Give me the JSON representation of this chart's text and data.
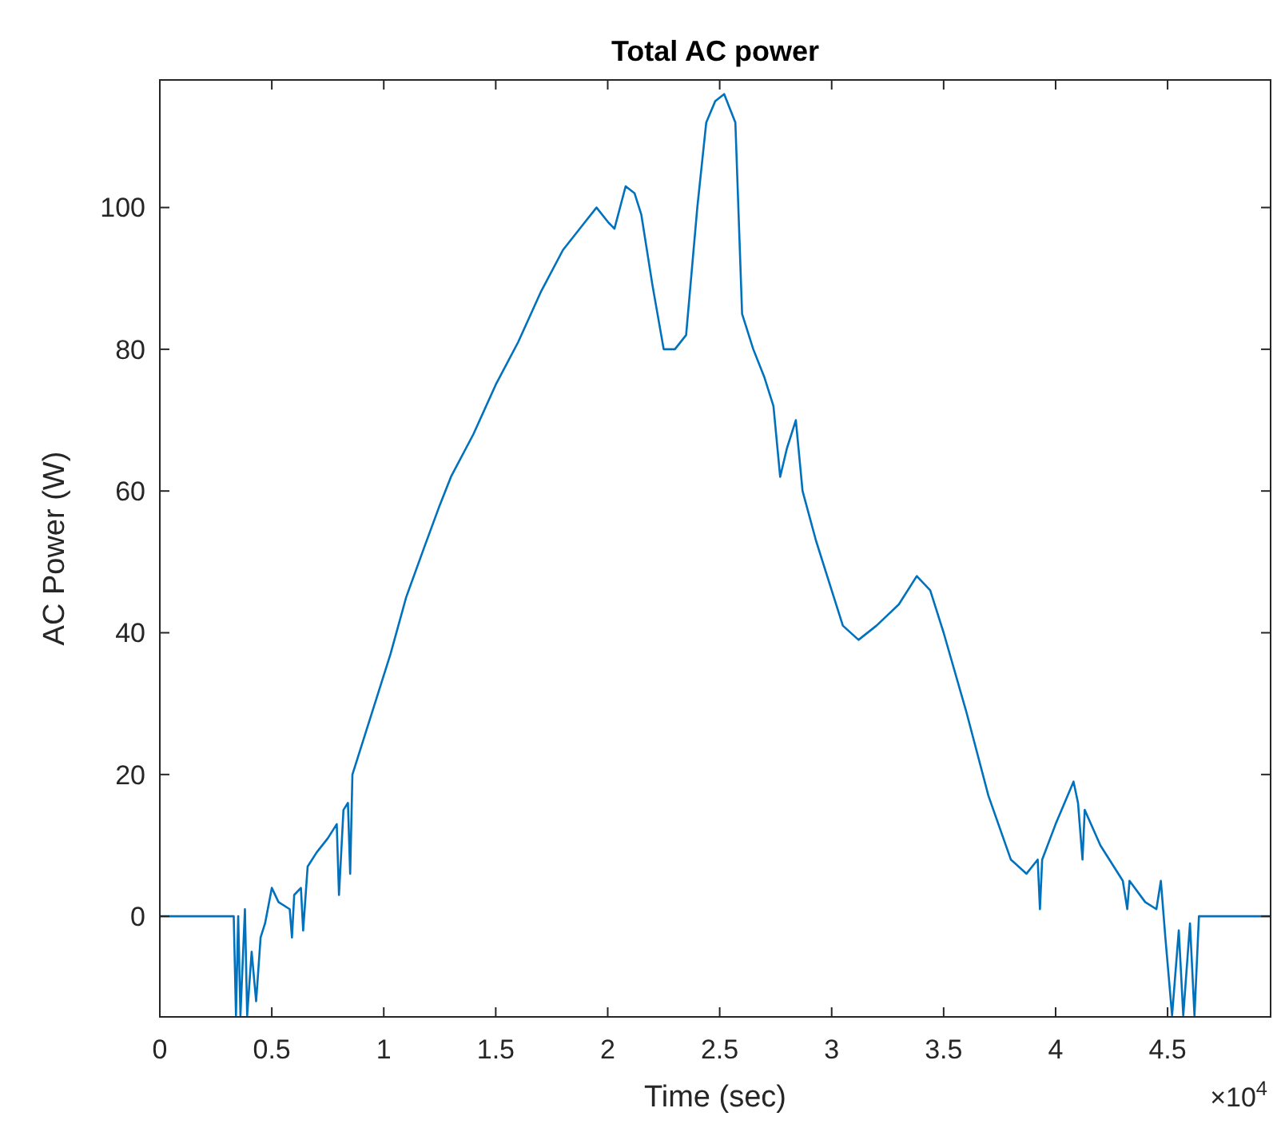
{
  "chart_data": {
    "type": "line",
    "title": "Total AC power",
    "xlabel": "Time (sec)",
    "ylabel": "AC Power (W)",
    "annotations": [
      "×10$^{4}$"
    ],
    "xlim": [
      0,
      4.96
    ],
    "ylim": [
      -14.2,
      118
    ],
    "xticks": [
      0,
      0.5,
      1,
      1.5,
      2,
      2.5,
      3,
      3.5,
      4,
      4.5
    ],
    "yticks": [
      0,
      20,
      40,
      60,
      80,
      100
    ],
    "marker": "none",
    "line_style": "solid",
    "series": [
      {
        "color": "#0072bd",
        "x": [
          0,
          0.33,
          0.34,
          0.35,
          0.36,
          0.38,
          0.39,
          0.41,
          0.43,
          0.45,
          0.47,
          0.5,
          0.53,
          0.58,
          0.59,
          0.6,
          0.63,
          0.64,
          0.66,
          0.7,
          0.75,
          0.79,
          0.8,
          0.82,
          0.84,
          0.85,
          0.86,
          0.92,
          0.97,
          1.03,
          1.1,
          1.18,
          1.25,
          1.3,
          1.4,
          1.5,
          1.6,
          1.7,
          1.8,
          1.9,
          1.95,
          2,
          2.03,
          2.08,
          2.12,
          2.15,
          2.2,
          2.25,
          2.3,
          2.35,
          2.4,
          2.44,
          2.48,
          2.52,
          2.57,
          2.6,
          2.65,
          2.7,
          2.74,
          2.77,
          2.8,
          2.84,
          2.87,
          2.93,
          3,
          3.05,
          3.12,
          3.2,
          3.3,
          3.38,
          3.44,
          3.5,
          3.6,
          3.7,
          3.8,
          3.87,
          3.92,
          3.93,
          3.94,
          4,
          4.08,
          4.1,
          4.12,
          4.13,
          4.2,
          4.3,
          4.32,
          4.33,
          4.4,
          4.45,
          4.47,
          4.49,
          4.52,
          4.55,
          4.57,
          4.6,
          4.62,
          4.64,
          4.96
        ],
        "values": [
          0,
          0,
          -14,
          0,
          -14,
          1,
          -14,
          -5,
          -12,
          -3,
          -1,
          4,
          2,
          1,
          -3,
          3,
          4,
          -2,
          7,
          9,
          11,
          13,
          3,
          15,
          16,
          6,
          20,
          26,
          31,
          37,
          45,
          52,
          58,
          62,
          68,
          75,
          81,
          88,
          94,
          98,
          100,
          98,
          97,
          103,
          102,
          99,
          89,
          80,
          80,
          82,
          100,
          112,
          115,
          116,
          112,
          85,
          80,
          76,
          72,
          62,
          66,
          70,
          60,
          53,
          46,
          41,
          39,
          41,
          44,
          48,
          46,
          40,
          29,
          17,
          8,
          6,
          8,
          1,
          8,
          13,
          19,
          16,
          8,
          15,
          10,
          5,
          1,
          5,
          2,
          1,
          5,
          -3,
          -14,
          -2,
          -14,
          -1,
          -14,
          0,
          0
        ]
      }
    ]
  }
}
